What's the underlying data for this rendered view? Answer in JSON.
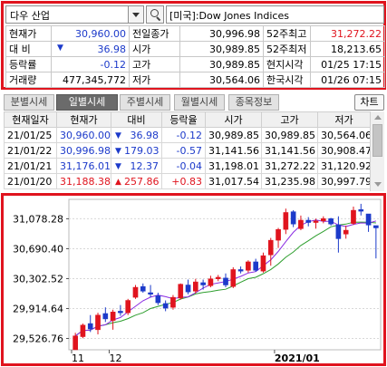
{
  "search": {
    "symbol_value": "다우 산업",
    "instrument_name": "[미국]:Dow Jones Indices"
  },
  "quote": {
    "rows": [
      {
        "l1": "현재가",
        "v1": "30,960.00",
        "c1": "blue",
        "l2": "전일종가",
        "v2": "30,996.98",
        "c2": "",
        "l3": "52주최고",
        "v3": "31,272.22",
        "c3": "red"
      },
      {
        "l1": "대  비",
        "v1": "36.98",
        "c1": "blue",
        "l2": "시가",
        "v2": "30,989.85",
        "c2": "",
        "l3": "52주최저",
        "v3": "18,213.65",
        "c3": ""
      },
      {
        "l1": "등락률",
        "v1": "-0.12",
        "c1": "blue",
        "l2": "고가",
        "v2": "30,989.85",
        "c2": "",
        "l3": "현지시각",
        "v3": "01/25 17:15",
        "c3": ""
      },
      {
        "l1": "거래량",
        "v1": "477,345,772",
        "c1": "",
        "l2": "저가",
        "v2": "30,564.06",
        "c2": "",
        "l3": "한국시각",
        "v3": "01/26 07:15",
        "c3": ""
      }
    ],
    "change_arrow": "▼"
  },
  "tabs": [
    "분별시세",
    "일별시세",
    "주별시세",
    "월별시세",
    "종목정보"
  ],
  "active_tab": 1,
  "chart_button": "차트",
  "daily": {
    "headers": [
      "현재일자",
      "현재가",
      "대비",
      "등락율",
      "시가",
      "고가",
      "저가"
    ],
    "rows": [
      {
        "date": "21/01/25",
        "close": "30,960.00",
        "arrow": "▼",
        "dir": "down",
        "chg": "36.98",
        "pct": "-0.12",
        "open": "30,989.85",
        "high": "30,989.85",
        "low": "30,564.06"
      },
      {
        "date": "21/01/22",
        "close": "30,996.98",
        "arrow": "▼",
        "dir": "down",
        "chg": "179.03",
        "pct": "-0.57",
        "open": "31,141.56",
        "high": "31,141.56",
        "low": "30,908.47"
      },
      {
        "date": "21/01/21",
        "close": "31,176.01",
        "arrow": "▼",
        "dir": "down",
        "chg": "12.37",
        "pct": "-0.04",
        "open": "31,198.01",
        "high": "31,272.22",
        "low": "31,120.92"
      },
      {
        "date": "21/01/20",
        "close": "31,188.38",
        "arrow": "▲",
        "dir": "up",
        "chg": "257.86",
        "pct": "+0.83",
        "open": "31,017.54",
        "high": "31,235.98",
        "low": "30,997.79"
      }
    ]
  },
  "chart_data": {
    "type": "candlestick",
    "y_ticks": [
      "31,078.28",
      "30,690.40",
      "30,302.52",
      "29,914.64",
      "29,526.76"
    ],
    "y_tick_values": [
      31078.28,
      30690.4,
      30302.52,
      29914.64,
      29526.76
    ],
    "ylim": [
      29380,
      31330
    ],
    "x_labels": [
      {
        "text": "11",
        "index": 0
      },
      {
        "text": "12",
        "index": 5
      },
      {
        "text": "2021/01",
        "index": 27
      }
    ],
    "colors": {
      "up": "#e0141e",
      "down": "#1c3aca",
      "ma_short": "#8a2be2",
      "ma_long": "#2e9e2e",
      "grid": "#d8d8d8"
    },
    "candles": [
      {
        "o": 29380,
        "h": 29600,
        "l": 29380,
        "c": 29560
      },
      {
        "o": 29550,
        "h": 29720,
        "l": 29530,
        "c": 29700
      },
      {
        "o": 29720,
        "h": 29830,
        "l": 29610,
        "c": 29650
      },
      {
        "o": 29640,
        "h": 29860,
        "l": 29580,
        "c": 29830
      },
      {
        "o": 29850,
        "h": 29930,
        "l": 29740,
        "c": 29780
      },
      {
        "o": 29760,
        "h": 29900,
        "l": 29640,
        "c": 29870
      },
      {
        "o": 29880,
        "h": 29960,
        "l": 29820,
        "c": 29860
      },
      {
        "o": 29860,
        "h": 30040,
        "l": 29830,
        "c": 30020
      },
      {
        "o": 30060,
        "h": 30220,
        "l": 30040,
        "c": 30190
      },
      {
        "o": 30200,
        "h": 30240,
        "l": 30120,
        "c": 30140
      },
      {
        "o": 30120,
        "h": 30220,
        "l": 30060,
        "c": 30100
      },
      {
        "o": 30080,
        "h": 30120,
        "l": 29960,
        "c": 29990
      },
      {
        "o": 29980,
        "h": 30020,
        "l": 29880,
        "c": 29920
      },
      {
        "o": 29930,
        "h": 30090,
        "l": 29900,
        "c": 30060
      },
      {
        "o": 30050,
        "h": 30240,
        "l": 30030,
        "c": 30230
      },
      {
        "o": 30220,
        "h": 30290,
        "l": 30100,
        "c": 30130
      },
      {
        "o": 30140,
        "h": 30300,
        "l": 30110,
        "c": 30260
      },
      {
        "o": 30250,
        "h": 30290,
        "l": 30160,
        "c": 30220
      },
      {
        "o": 30210,
        "h": 30340,
        "l": 30190,
        "c": 30300
      },
      {
        "o": 30300,
        "h": 30350,
        "l": 30270,
        "c": 30320
      },
      {
        "o": 30310,
        "h": 30370,
        "l": 30190,
        "c": 30220
      },
      {
        "o": 30200,
        "h": 30450,
        "l": 30180,
        "c": 30420
      },
      {
        "o": 30420,
        "h": 30460,
        "l": 30370,
        "c": 30400
      },
      {
        "o": 30410,
        "h": 30540,
        "l": 30380,
        "c": 30520
      },
      {
        "o": 30520,
        "h": 30560,
        "l": 30390,
        "c": 30410
      },
      {
        "o": 30400,
        "h": 30640,
        "l": 30380,
        "c": 30600
      },
      {
        "o": 30610,
        "h": 30830,
        "l": 30470,
        "c": 30800
      },
      {
        "o": 30800,
        "h": 30960,
        "l": 30700,
        "c": 30940
      },
      {
        "o": 30940,
        "h": 31210,
        "l": 30880,
        "c": 31160
      },
      {
        "o": 31170,
        "h": 31190,
        "l": 30970,
        "c": 31010
      },
      {
        "o": 30950,
        "h": 31120,
        "l": 30930,
        "c": 31060
      },
      {
        "o": 31060,
        "h": 31100,
        "l": 30980,
        "c": 31030
      },
      {
        "o": 31030,
        "h": 31080,
        "l": 30950,
        "c": 31050
      },
      {
        "o": 31050,
        "h": 31110,
        "l": 31020,
        "c": 31080
      },
      {
        "o": 31080,
        "h": 31090,
        "l": 30990,
        "c": 31010
      },
      {
        "o": 31000,
        "h": 31110,
        "l": 30640,
        "c": 30820
      },
      {
        "o": 30880,
        "h": 30990,
        "l": 30820,
        "c": 30930
      },
      {
        "o": 31017.54,
        "h": 31235.98,
        "l": 30997.79,
        "c": 31188.38
      },
      {
        "o": 31198.01,
        "h": 31272.22,
        "l": 31120.92,
        "c": 31176.01
      },
      {
        "o": 31141.56,
        "h": 31141.56,
        "l": 30908.47,
        "c": 30996.98
      },
      {
        "o": 30989.85,
        "h": 30989.85,
        "l": 30564.06,
        "c": 30960.0
      }
    ]
  }
}
